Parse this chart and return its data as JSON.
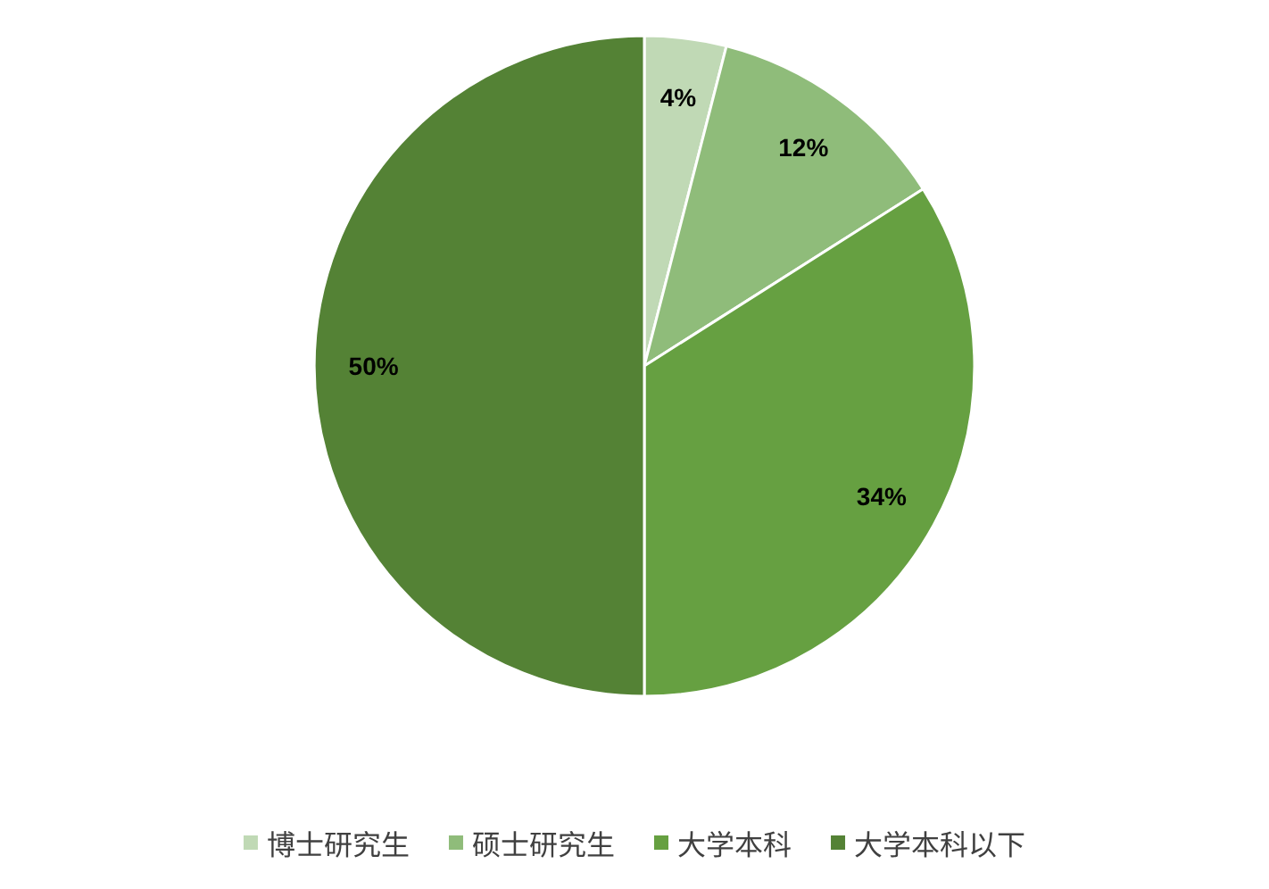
{
  "chart_data": {
    "type": "pie",
    "categories": [
      "博士研究生",
      "硕士研究生",
      "大学本科",
      "大学本科以下"
    ],
    "values": [
      4,
      12,
      34,
      50
    ],
    "value_labels": [
      "4%",
      "12%",
      "34%",
      "50%"
    ],
    "colors": [
      "#c0d9b5",
      "#8fbc7a",
      "#66a041",
      "#548235"
    ],
    "legend": "bottom"
  }
}
